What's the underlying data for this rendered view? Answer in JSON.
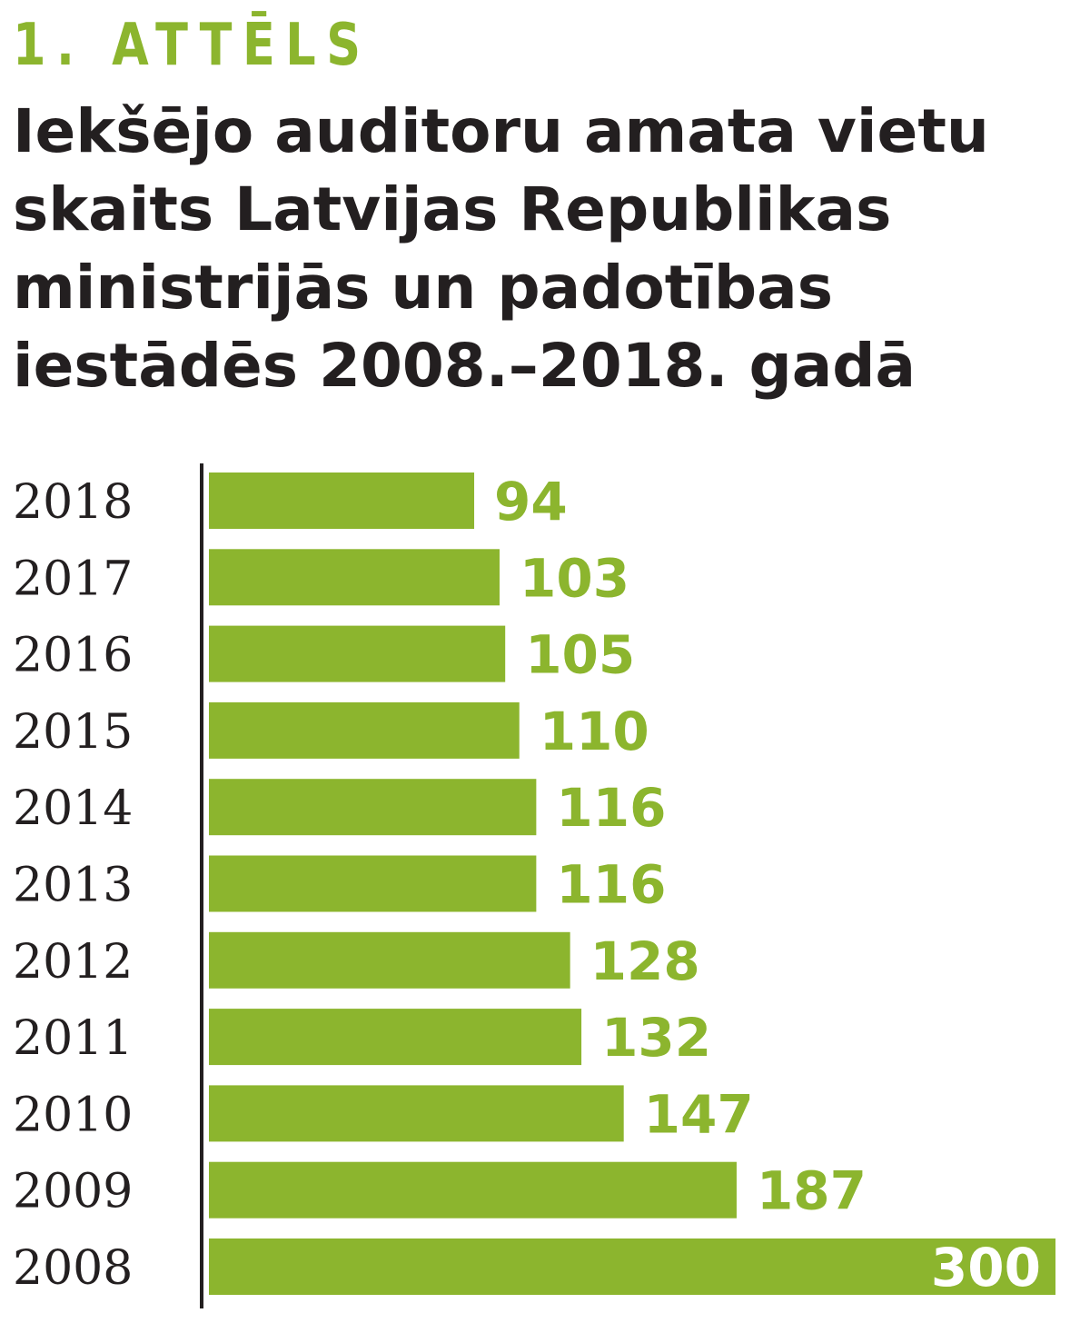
{
  "figure_label": "1. ATTĒLS",
  "colors": {
    "bar": "#8cb52e",
    "axis": "#231f20",
    "inside_label": "#ffffff"
  },
  "chart_data": {
    "type": "bar",
    "orientation": "horizontal",
    "title": "Iekšējo auditoru amata vietu\nskaits Latvijas Republikas\nministrijās un padotības\niestādēs 2008.–2018. gadā",
    "xlabel": "",
    "ylabel": "",
    "categories": [
      "2018",
      "2017",
      "2016",
      "2015",
      "2014",
      "2013",
      "2012",
      "2011",
      "2010",
      "2009",
      "2008"
    ],
    "values": [
      94,
      103,
      105,
      110,
      116,
      116,
      128,
      132,
      147,
      187,
      300
    ],
    "data_labels": [
      "94",
      "103",
      "105",
      "110",
      "116",
      "116",
      "128",
      "132",
      "147",
      "187",
      "300"
    ],
    "xlim": [
      0,
      300
    ],
    "grid": false,
    "legend": "none"
  }
}
